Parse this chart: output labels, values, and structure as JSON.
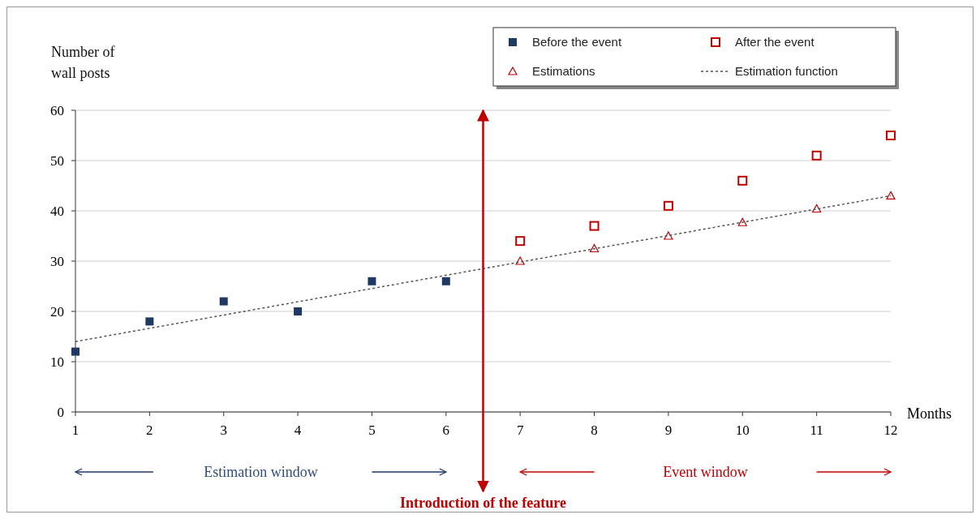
{
  "chart_data": {
    "type": "scatter",
    "xlabel": "Months",
    "ylabel": "Number of wall posts",
    "xlim": [
      1,
      12
    ],
    "xticks": [
      1,
      2,
      3,
      4,
      5,
      6,
      7,
      8,
      9,
      10,
      11,
      12
    ],
    "ylim": [
      0,
      60
    ],
    "yticks": [
      0,
      10,
      20,
      30,
      40,
      50,
      60
    ],
    "grid": "y",
    "legend": "top right",
    "series": [
      {
        "name": "Before the event",
        "color": "#1f3864",
        "marker": "square",
        "x": [
          1,
          2,
          3,
          4,
          5,
          6
        ],
        "values": [
          12,
          18,
          22,
          20,
          26,
          26
        ]
      },
      {
        "name": "After the event",
        "color": "#c00000",
        "marker": "square",
        "x": [
          7,
          8,
          9,
          10,
          11,
          12
        ],
        "values": [
          34,
          37,
          41,
          46,
          51,
          55
        ]
      },
      {
        "name": "Estimations",
        "color": "#c00000",
        "marker": "triangle",
        "x": [
          7,
          8,
          9,
          10,
          11,
          12
        ],
        "values": [
          30,
          32.5,
          35,
          37.7,
          40.4,
          43
        ]
      },
      {
        "name": "Estimation function",
        "type": "line",
        "color": "#555555",
        "marker": "none",
        "line_style": "dotted",
        "x": [
          1,
          12
        ],
        "values": [
          14,
          43
        ]
      }
    ],
    "ref_lines": [
      {
        "axis": "x",
        "value": 6.5,
        "label": "Introduction of the feature",
        "color": "#c00000"
      }
    ],
    "annotations": [
      "Estimation window",
      "Event window"
    ]
  }
}
